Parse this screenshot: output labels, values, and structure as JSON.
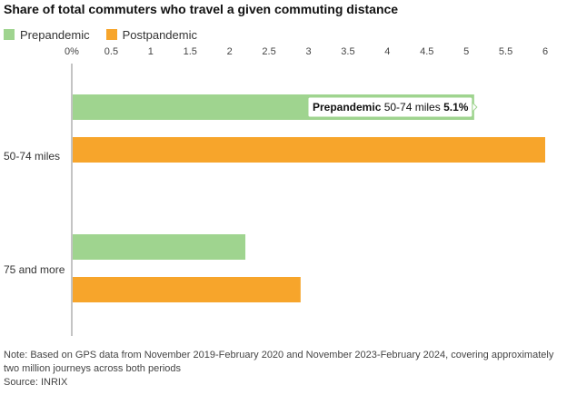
{
  "chart_data": {
    "type": "bar",
    "orientation": "horizontal",
    "title": "Share of total commuters who travel a given commuting distance",
    "categories": [
      "50-74 miles",
      "75 and more"
    ],
    "series": [
      {
        "name": "Prepandemic",
        "values": [
          5.1,
          2.2
        ],
        "color": "#9fd48f"
      },
      {
        "name": "Postpandemic",
        "values": [
          6.0,
          2.9
        ],
        "color": "#f7a52b"
      }
    ],
    "x_ticks": [
      "0%",
      "0.5",
      "1",
      "1.5",
      "2",
      "2.5",
      "3",
      "3.5",
      "4",
      "4.5",
      "5",
      "5.5",
      "6"
    ],
    "xlim": [
      0,
      6
    ],
    "grid": false,
    "legend_position": "top-left",
    "tooltip": {
      "series": "Prepandemic",
      "category": "50-74 miles",
      "value": "5.1%"
    }
  },
  "notes": [
    "Note: Based on GPS data from November 2019-February 2020 and November 2023-February 2024, covering approximately",
    "two million journeys across both periods",
    "Source: INRIX"
  ]
}
